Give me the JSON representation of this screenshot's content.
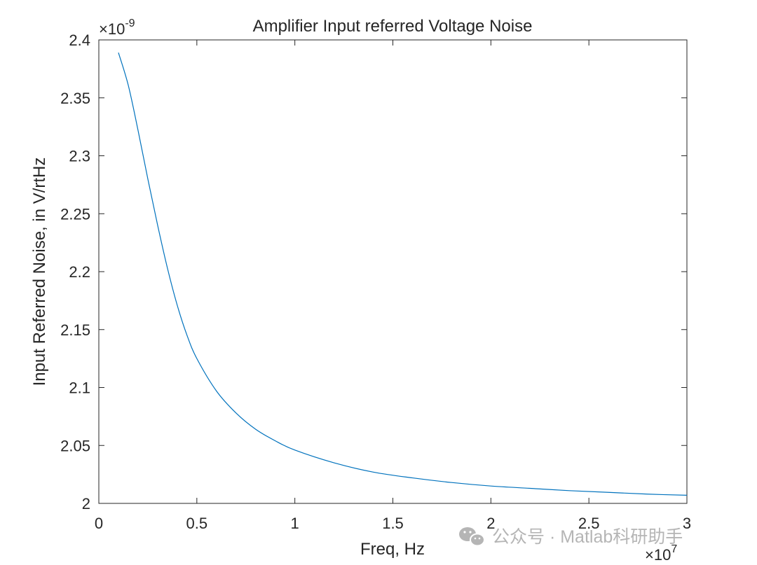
{
  "chart_data": {
    "type": "line",
    "title": "Amplifier Input referred Voltage Noise",
    "xlabel": "Freq, Hz",
    "ylabel": "Input Referred Noise, in V/rtHz",
    "x_multiplier": {
      "base": "×10",
      "exponent": "7"
    },
    "y_multiplier": {
      "base": "×10",
      "exponent": "-9"
    },
    "xlim": [
      0,
      3
    ],
    "ylim": [
      2,
      2.4
    ],
    "xticks": [
      0,
      0.5,
      1,
      1.5,
      2,
      2.5,
      3
    ],
    "xtick_labels": [
      "0",
      "0.5",
      "1",
      "1.5",
      "2",
      "2.5",
      "3"
    ],
    "yticks": [
      2,
      2.05,
      2.1,
      2.15,
      2.2,
      2.25,
      2.3,
      2.35,
      2.4
    ],
    "ytick_labels": [
      "2",
      "2.05",
      "2.1",
      "2.15",
      "2.2",
      "2.25",
      "2.3",
      "2.35",
      "2.4"
    ],
    "grid": false,
    "legend": "none",
    "series": [
      {
        "color": "#0072BD",
        "x": [
          0.1,
          0.15,
          0.2,
          0.25,
          0.3,
          0.35,
          0.4,
          0.45,
          0.5,
          0.6,
          0.7,
          0.8,
          0.9,
          1.0,
          1.2,
          1.4,
          1.6,
          1.8,
          2.0,
          2.2,
          2.4,
          2.6,
          2.8,
          3.0
        ],
        "y": [
          2.389,
          2.361,
          2.322,
          2.28,
          2.24,
          2.203,
          2.171,
          2.145,
          2.125,
          2.097,
          2.078,
          2.064,
          2.054,
          2.046,
          2.035,
          2.027,
          2.022,
          2.018,
          2.015,
          2.013,
          2.011,
          2.0095,
          2.008,
          2.007
        ]
      }
    ]
  },
  "watermark": {
    "icon": "wechat-icon",
    "text": "公众号 · Matlab科研助手"
  }
}
